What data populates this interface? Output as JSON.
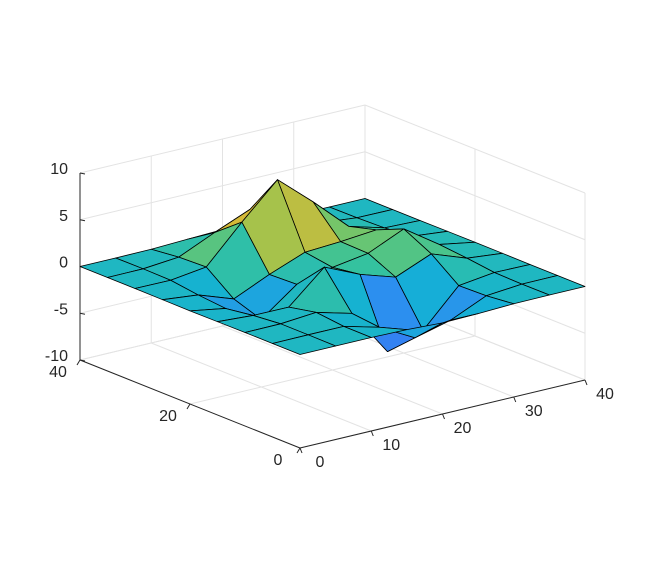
{
  "chart_data": {
    "type": "surface",
    "x": [
      0,
      5,
      10,
      15,
      20,
      25,
      30,
      35,
      40
    ],
    "y": [
      0,
      5,
      10,
      15,
      20,
      25,
      30,
      35,
      40
    ],
    "z": [
      [
        0,
        0,
        0,
        -0.07,
        -0.25,
        -0.17,
        -0.03,
        0,
        0
      ],
      [
        0,
        0.02,
        0.01,
        -0.99,
        -3.02,
        -2.05,
        -0.35,
        -0.01,
        0
      ],
      [
        0,
        0.02,
        0.33,
        -0.68,
        -5.68,
        -4.32,
        -0.44,
        0.05,
        0
      ],
      [
        -0.02,
        -0.26,
        -0.28,
        3.09,
        1.4,
        0.2,
        1.78,
        0.41,
        0.02
      ],
      [
        -0.04,
        -0.69,
        -2.77,
        0.07,
        0.98,
        1.57,
        3.27,
        0.7,
        0.03
      ],
      [
        -0.02,
        -0.42,
        -1.76,
        -0.05,
        1.42,
        1.65,
        1.99,
        0.4,
        0.02
      ],
      [
        0,
        -0.03,
        0.48,
        4.37,
        8.0,
        4.72,
        1.19,
        0.12,
        0
      ],
      [
        0,
        0.02,
        0.36,
        2.07,
        3.65,
        2.09,
        0.41,
        0.03,
        0
      ],
      [
        0,
        0,
        0.03,
        0.17,
        0.3,
        0.17,
        0.03,
        0,
        0
      ]
    ],
    "xlim": [
      0,
      40
    ],
    "ylim": [
      0,
      40
    ],
    "zlim": [
      -10,
      10
    ],
    "xticks": [
      0,
      10,
      20,
      30,
      40
    ],
    "yticks": [
      0,
      20,
      40
    ],
    "zticks": [
      -10,
      -5,
      0,
      5,
      10
    ],
    "grid": true,
    "colormap": [
      "#3e26a8",
      "#4256f0",
      "#2f8cf2",
      "#14b1d4",
      "#37c39b",
      "#8dc656",
      "#d8b936",
      "#fcce2e",
      "#f9fb15"
    ],
    "edge_color": "#000000"
  }
}
